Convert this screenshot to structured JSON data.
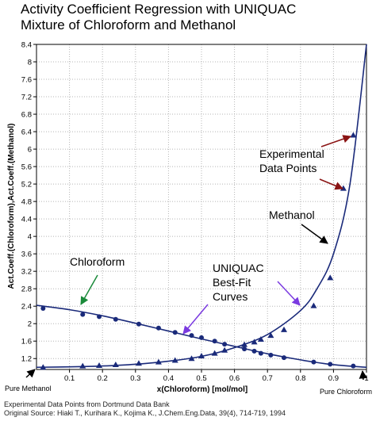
{
  "chart_data": {
    "type": "scatter",
    "title": "Activity Coefficient Regression with UNIQUAC",
    "subtitle": "Mixture of Chloroform and Methanol",
    "xlabel": "x(Chloroform) [mol/mol]",
    "ylabel": "Act.Coeff.(Chloroform),Act.Coeff.(Methanol)",
    "xlim": [
      0,
      1
    ],
    "ylim": [
      0.95,
      8.4
    ],
    "xticks": [
      "0.1",
      "0.2",
      "0.3",
      "0.4",
      "0.5",
      "0.6",
      "0.7",
      "0.8",
      "0.9",
      "1"
    ],
    "yticks": [
      "1.2",
      "1.6",
      "2",
      "2.4",
      "2.8",
      "3.2",
      "3.6",
      "4",
      "4.4",
      "4.8",
      "5.2",
      "5.6",
      "6",
      "6.4",
      "6.8",
      "7.2",
      "7.6",
      "8",
      "8.4"
    ],
    "grid": true,
    "series": [
      {
        "name": "Chloroform",
        "marker": "circle",
        "x": [
          0.02,
          0.14,
          0.19,
          0.24,
          0.31,
          0.37,
          0.42,
          0.47,
          0.5,
          0.54,
          0.57,
          0.63,
          0.66,
          0.68,
          0.71,
          0.75,
          0.84,
          0.89,
          0.96
        ],
        "y": [
          2.35,
          2.21,
          2.16,
          2.1,
          1.99,
          1.9,
          1.8,
          1.73,
          1.68,
          1.6,
          1.53,
          1.42,
          1.37,
          1.32,
          1.28,
          1.22,
          1.12,
          1.07,
          1.03
        ],
        "curve_x": [
          0,
          0.1,
          0.2,
          0.3,
          0.4,
          0.5,
          0.6,
          0.7,
          0.8,
          0.9,
          1
        ],
        "curve_y": [
          2.42,
          2.32,
          2.18,
          2.01,
          1.83,
          1.65,
          1.48,
          1.31,
          1.17,
          1.06,
          1.0
        ]
      },
      {
        "name": "Methanol",
        "marker": "triangle",
        "x": [
          0.02,
          0.14,
          0.19,
          0.24,
          0.31,
          0.37,
          0.42,
          0.47,
          0.5,
          0.54,
          0.57,
          0.63,
          0.66,
          0.68,
          0.71,
          0.75,
          0.84,
          0.89,
          0.93,
          0.96
        ],
        "y": [
          1.0,
          1.03,
          1.04,
          1.06,
          1.09,
          1.12,
          1.16,
          1.2,
          1.26,
          1.32,
          1.39,
          1.52,
          1.58,
          1.64,
          1.73,
          1.86,
          2.41,
          3.05,
          5.1,
          6.32
        ],
        "curve_x": [
          0,
          0.1,
          0.2,
          0.3,
          0.4,
          0.5,
          0.6,
          0.7,
          0.8,
          0.85,
          0.9,
          0.95,
          1
        ],
        "curve_y": [
          1.0,
          1.01,
          1.03,
          1.07,
          1.14,
          1.25,
          1.45,
          1.75,
          2.3,
          2.8,
          3.6,
          5.2,
          8.4
        ]
      }
    ],
    "annotations": {
      "chloroform": "Chloroform",
      "uniquac": [
        "UNIQUAC",
        "Best-Fit",
        "Curves"
      ],
      "experimental": [
        "Experimental",
        "Data Points"
      ],
      "methanol": "Methanol",
      "pure_methanol": "Pure Methanol",
      "pure_chloroform": "Pure Chloroform"
    }
  },
  "footer": {
    "source_line1": "Experimental Data Points from Dortmund Data Bank",
    "source_line2": "Original Source: Hiaki T., Kurihara K., Kojima K., J.Chem.Eng.Data, 39(4), 714-719, 1994"
  },
  "colors": {
    "curve": "#1a2a7a",
    "marker": "#1a2a7a",
    "grid": "#b5b5b5",
    "arrow_green": "#1a8a3a",
    "arrow_purple": "#7a3ae0",
    "arrow_darkred": "#8a1414",
    "arrow_black": "#000000"
  }
}
